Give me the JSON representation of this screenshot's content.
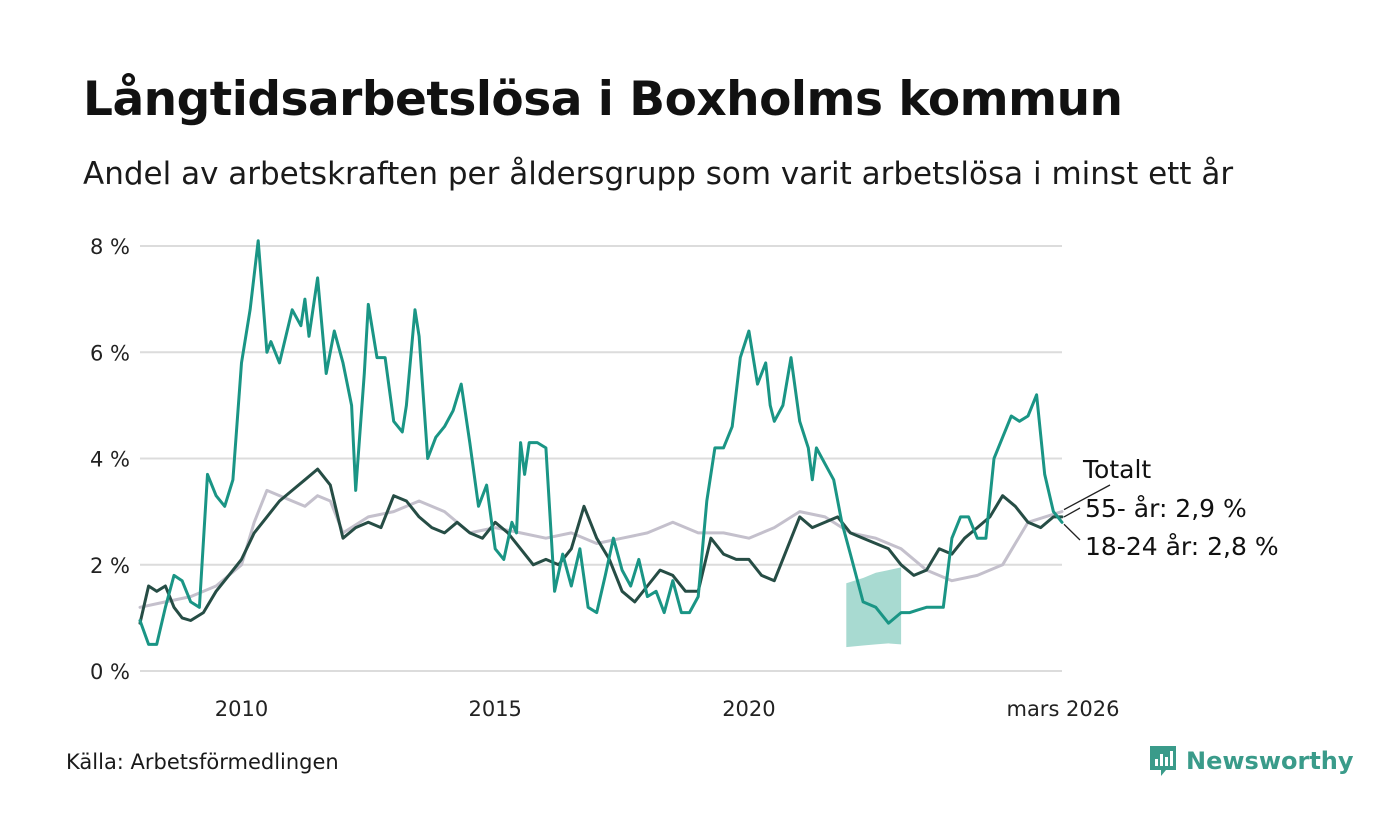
{
  "title": "Långtidsarbetslösa i Boxholms kommun",
  "subtitle": "Andel av arbetskraften per åldersgrupp som varit arbetslösa i minst ett år",
  "source": "Källa: Arbetsförmedlingen",
  "brand": "Newsworthy",
  "colors": {
    "total": "#c4c0cc",
    "age55": "#264d45",
    "age1824": "#1a9585",
    "band": "#a3d8cf",
    "grid": "#dcdcdc",
    "brand": "#3a9b8a"
  },
  "chart_data": {
    "type": "line",
    "title": "Långtidsarbetslösa i Boxholms kommun",
    "ylim": [
      0,
      8
    ],
    "yticks": [
      0,
      2,
      4,
      6,
      8
    ],
    "ytick_labels": [
      "0 %",
      "2 %",
      "4 %",
      "6 %",
      "8 %"
    ],
    "xlim": [
      2008.0,
      2026.17
    ],
    "xticks": [
      2010,
      2015,
      2020,
      2026.17
    ],
    "xtick_labels": [
      "2010",
      "2015",
      "2020",
      "mars 2026"
    ],
    "end_labels": {
      "total": "Totalt",
      "age55": "55- år: 2,9 %",
      "age1824": "18-24 år: 2,8 %"
    },
    "uncertainty_band": {
      "series": "18-24 år",
      "x": [
        2021.92,
        2022.25,
        2022.5,
        2022.75,
        2023.0
      ],
      "lower": [
        0.45,
        0.48,
        0.5,
        0.52,
        0.5
      ],
      "upper": [
        1.65,
        1.75,
        1.85,
        1.9,
        1.95
      ]
    },
    "series": [
      {
        "name": "Totalt",
        "x": [
          2008.0,
          2008.5,
          2009.0,
          2009.5,
          2010.0,
          2010.25,
          2010.5,
          2011.0,
          2011.25,
          2011.5,
          2011.75,
          2012.0,
          2012.5,
          2013.0,
          2013.5,
          2014.0,
          2014.5,
          2015.0,
          2015.5,
          2016.0,
          2016.5,
          2017.0,
          2017.5,
          2018.0,
          2018.5,
          2019.0,
          2019.5,
          2020.0,
          2020.5,
          2021.0,
          2021.5,
          2022.0,
          2022.5,
          2023.0,
          2023.5,
          2024.0,
          2024.5,
          2025.0,
          2025.5,
          2026.17
        ],
        "values": [
          1.2,
          1.3,
          1.4,
          1.6,
          2.0,
          2.8,
          3.4,
          3.2,
          3.1,
          3.3,
          3.2,
          2.6,
          2.9,
          3.0,
          3.2,
          3.0,
          2.6,
          2.7,
          2.6,
          2.5,
          2.6,
          2.4,
          2.5,
          2.6,
          2.8,
          2.6,
          2.6,
          2.5,
          2.7,
          3.0,
          2.9,
          2.6,
          2.5,
          2.3,
          1.9,
          1.7,
          1.8,
          2.0,
          2.8,
          3.0
        ]
      },
      {
        "name": "55- år",
        "x": [
          2008.0,
          2008.17,
          2008.33,
          2008.5,
          2008.67,
          2008.83,
          2009.0,
          2009.25,
          2009.5,
          2009.75,
          2010.0,
          2010.25,
          2010.5,
          2010.75,
          2011.0,
          2011.25,
          2011.5,
          2011.75,
          2012.0,
          2012.25,
          2012.5,
          2012.75,
          2013.0,
          2013.25,
          2013.5,
          2013.75,
          2014.0,
          2014.25,
          2014.5,
          2014.75,
          2015.0,
          2015.25,
          2015.5,
          2015.75,
          2016.0,
          2016.25,
          2016.5,
          2016.75,
          2017.0,
          2017.25,
          2017.5,
          2017.75,
          2018.0,
          2018.25,
          2018.5,
          2018.75,
          2019.0,
          2019.25,
          2019.5,
          2019.75,
          2020.0,
          2020.25,
          2020.5,
          2020.75,
          2021.0,
          2021.25,
          2021.5,
          2021.75,
          2022.0,
          2022.25,
          2022.5,
          2022.75,
          2023.0,
          2023.25,
          2023.5,
          2023.75,
          2024.0,
          2024.25,
          2024.5,
          2024.75,
          2025.0,
          2025.25,
          2025.5,
          2025.75,
          2026.0,
          2026.17
        ],
        "values": [
          0.9,
          1.6,
          1.5,
          1.6,
          1.2,
          1.0,
          0.95,
          1.1,
          1.5,
          1.8,
          2.1,
          2.6,
          2.9,
          3.2,
          3.4,
          3.6,
          3.8,
          3.5,
          2.5,
          2.7,
          2.8,
          2.7,
          3.3,
          3.2,
          2.9,
          2.7,
          2.6,
          2.8,
          2.6,
          2.5,
          2.8,
          2.6,
          2.3,
          2.0,
          2.1,
          2.0,
          2.3,
          3.1,
          2.5,
          2.1,
          1.5,
          1.3,
          1.6,
          1.9,
          1.8,
          1.5,
          1.5,
          2.5,
          2.2,
          2.1,
          2.1,
          1.8,
          1.7,
          2.3,
          2.9,
          2.7,
          2.8,
          2.9,
          2.6,
          2.5,
          2.4,
          2.3,
          2.0,
          1.8,
          1.9,
          2.3,
          2.2,
          2.5,
          2.7,
          2.9,
          3.3,
          3.1,
          2.8,
          2.7,
          2.9,
          2.9
        ]
      },
      {
        "name": "18-24 år",
        "x": [
          2008.0,
          2008.17,
          2008.33,
          2008.5,
          2008.67,
          2008.83,
          2009.0,
          2009.17,
          2009.33,
          2009.5,
          2009.67,
          2009.83,
          2010.0,
          2010.17,
          2010.33,
          2010.42,
          2010.5,
          2010.58,
          2010.75,
          2011.0,
          2011.17,
          2011.25,
          2011.33,
          2011.5,
          2011.67,
          2011.83,
          2012.0,
          2012.17,
          2012.25,
          2012.42,
          2012.5,
          2012.67,
          2012.83,
          2013.0,
          2013.17,
          2013.25,
          2013.42,
          2013.5,
          2013.67,
          2013.83,
          2014.0,
          2014.17,
          2014.33,
          2014.5,
          2014.67,
          2014.83,
          2015.0,
          2015.17,
          2015.33,
          2015.42,
          2015.5,
          2015.58,
          2015.67,
          2015.83,
          2016.0,
          2016.17,
          2016.33,
          2016.5,
          2016.67,
          2016.83,
          2017.0,
          2017.17,
          2017.33,
          2017.5,
          2017.67,
          2017.83,
          2018.0,
          2018.17,
          2018.33,
          2018.5,
          2018.67,
          2018.83,
          2019.0,
          2019.17,
          2019.33,
          2019.5,
          2019.67,
          2019.83,
          2020.0,
          2020.17,
          2020.33,
          2020.42,
          2020.5,
          2020.67,
          2020.83,
          2021.0,
          2021.17,
          2021.25,
          2021.33,
          2021.5,
          2021.67,
          2021.83,
          2022.0,
          2022.25,
          2022.5,
          2022.75,
          2023.0,
          2023.17,
          2023.33,
          2023.5,
          2023.67,
          2023.83,
          2024.0,
          2024.17,
          2024.33,
          2024.5,
          2024.67,
          2024.83,
          2025.0,
          2025.17,
          2025.33,
          2025.5,
          2025.67,
          2025.83,
          2026.0,
          2026.17
        ],
        "values": [
          0.95,
          0.5,
          0.5,
          1.2,
          1.8,
          1.7,
          1.3,
          1.2,
          3.7,
          3.3,
          3.1,
          3.6,
          5.8,
          6.8,
          8.1,
          7.0,
          6.0,
          6.2,
          5.8,
          6.8,
          6.5,
          7.0,
          6.3,
          7.4,
          5.6,
          6.4,
          5.8,
          5.0,
          3.4,
          5.6,
          6.9,
          5.9,
          5.9,
          4.7,
          4.5,
          5.0,
          6.8,
          6.3,
          4.0,
          4.4,
          4.6,
          4.9,
          5.4,
          4.3,
          3.1,
          3.5,
          2.3,
          2.1,
          2.8,
          2.6,
          4.3,
          3.7,
          4.3,
          4.3,
          4.2,
          1.5,
          2.2,
          1.6,
          2.3,
          1.2,
          1.1,
          1.8,
          2.5,
          1.9,
          1.6,
          2.1,
          1.4,
          1.5,
          1.1,
          1.7,
          1.1,
          1.1,
          1.4,
          3.2,
          4.2,
          4.2,
          4.6,
          5.9,
          6.4,
          5.4,
          5.8,
          5.0,
          4.7,
          5.0,
          5.9,
          4.7,
          4.2,
          3.6,
          4.2,
          3.9,
          3.6,
          2.8,
          2.2,
          1.3,
          1.2,
          0.9,
          1.1,
          1.1,
          1.15,
          1.2,
          1.2,
          1.2,
          2.5,
          2.9,
          2.9,
          2.5,
          2.5,
          4.0,
          4.4,
          4.8,
          4.7,
          4.8,
          5.2,
          3.7,
          3.0,
          2.8
        ]
      }
    ]
  }
}
